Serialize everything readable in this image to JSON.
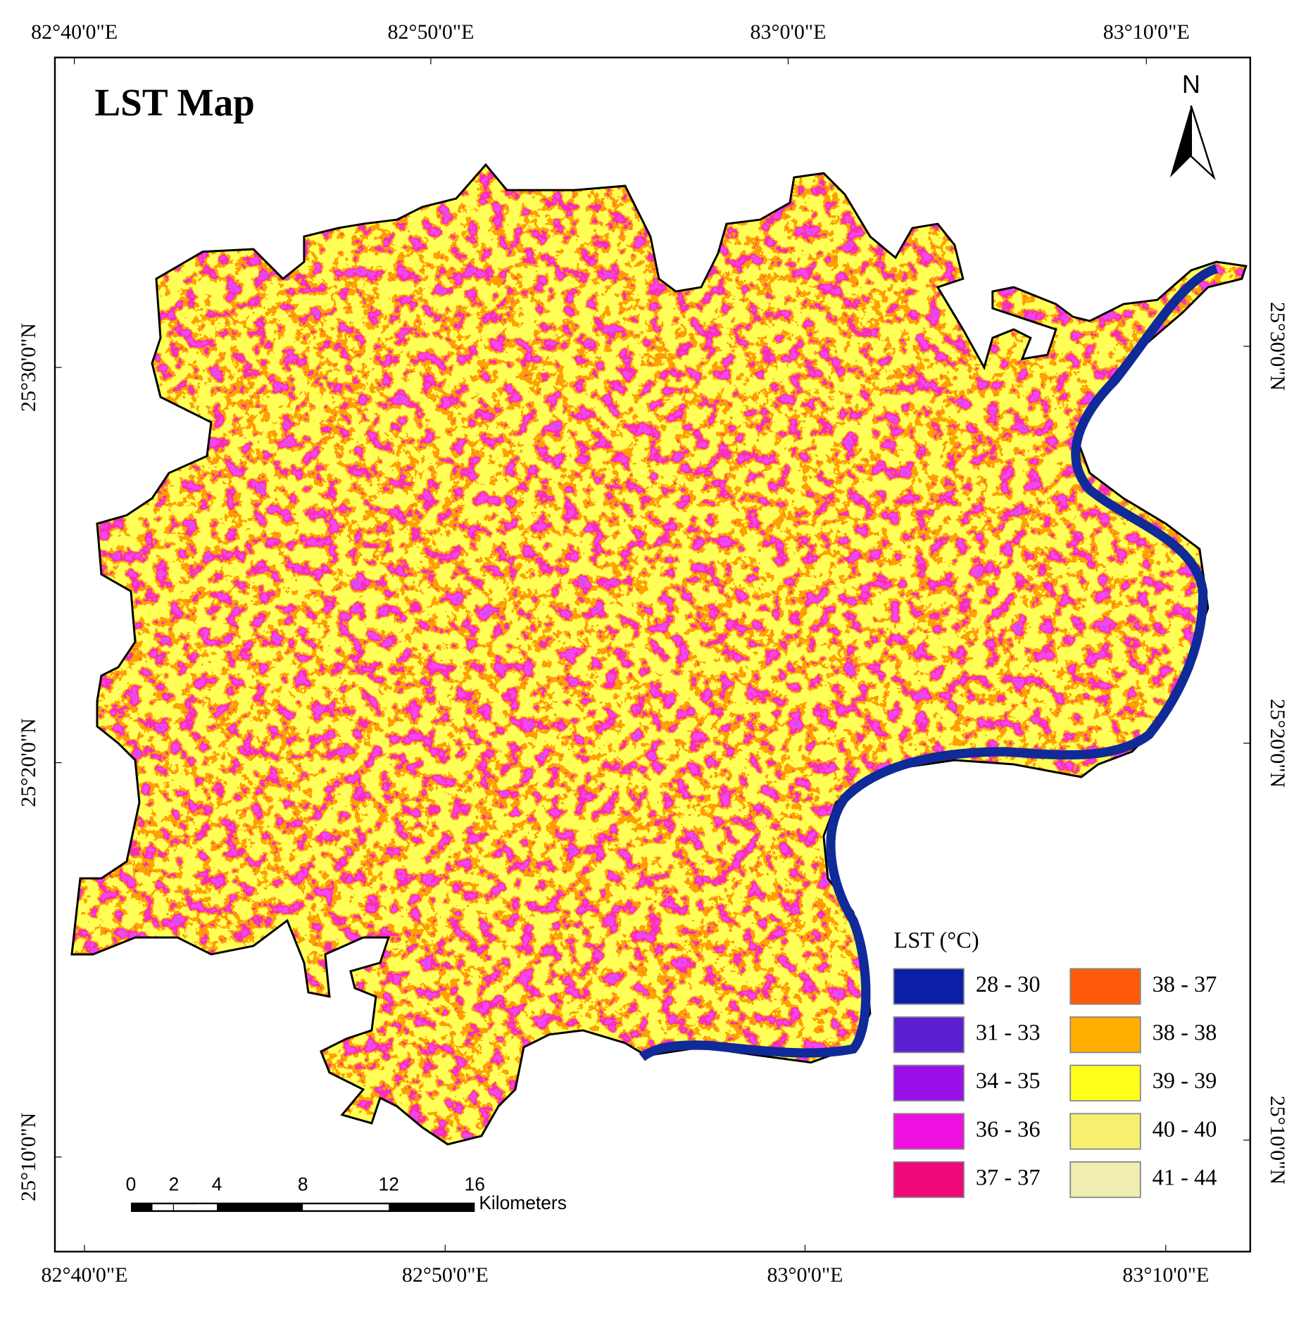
{
  "title": "LST Map",
  "north": "N",
  "top_labels": [
    "82°40'0\"E",
    "82°50'0\"E",
    "83°0'0\"E",
    "83°10'0\"E"
  ],
  "bottom_labels": [
    "82°40'0\"E",
    "82°50'0\"E",
    "83°0'0\"E",
    "83°10'0\"E"
  ],
  "left_labels": [
    "25°30'0\"N",
    "25°20'0\"N",
    "25°10'0\"N"
  ],
  "right_labels": [
    "25°30'0\"N",
    "25°20'0\"N",
    "25°10'0\"N"
  ],
  "legend": {
    "title": "LST (°C)",
    "items": [
      {
        "label": "28 - 30",
        "color": "#0a1ea8"
      },
      {
        "label": "31 - 33",
        "color": "#5a1fd0"
      },
      {
        "label": "34 - 35",
        "color": "#9a10e8"
      },
      {
        "label": "36 - 36",
        "color": "#ee10e0"
      },
      {
        "label": "37 - 37",
        "color": "#ee0878"
      },
      {
        "label": "38 - 37",
        "color": "#ff5a0a"
      },
      {
        "label": "38 - 38",
        "color": "#ffae00"
      },
      {
        "label": "39 - 39",
        "color": "#ffff1a"
      },
      {
        "label": "40 - 40",
        "color": "#f5f070"
      },
      {
        "label": "41 - 44",
        "color": "#f0eeb0"
      }
    ]
  },
  "scale_bar": {
    "ticks": [
      0,
      2,
      4,
      8,
      12,
      16
    ],
    "unit": "Kilometers"
  }
}
